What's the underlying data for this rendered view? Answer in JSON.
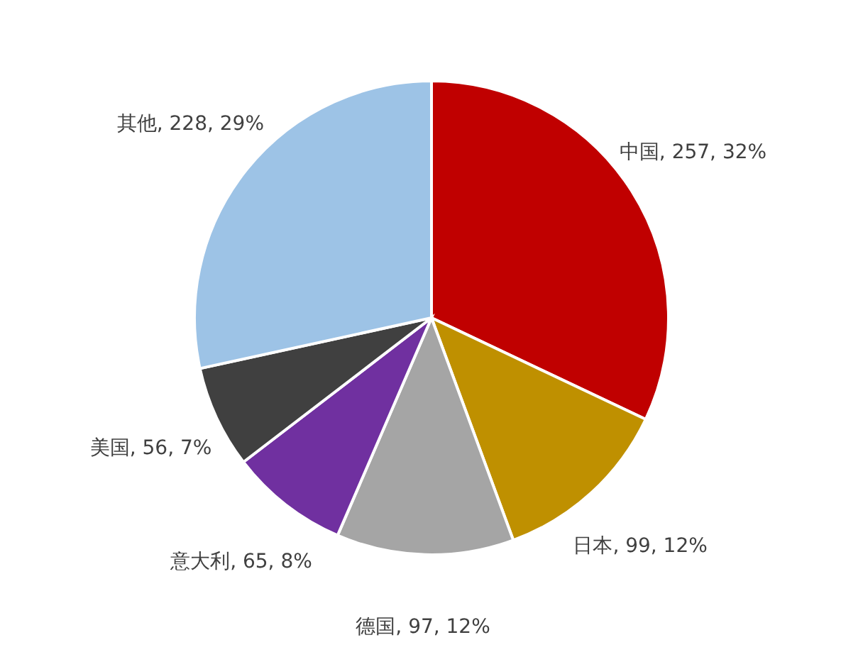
{
  "chart_data": {
    "type": "pie",
    "categories": [
      "中国",
      "日本",
      "德国",
      "意大利",
      "美国",
      "其他"
    ],
    "values": [
      257,
      99,
      97,
      65,
      56,
      228
    ],
    "colors": [
      "#c00000",
      "#bf9000",
      "#a5a5a5",
      "#7030a0",
      "#404040",
      "#9dc3e6"
    ],
    "value_labels": [
      "257, 32%",
      "99, 12%",
      "97, 12%",
      "65, 8%",
      "56, 7%",
      "228, 29%"
    ]
  }
}
